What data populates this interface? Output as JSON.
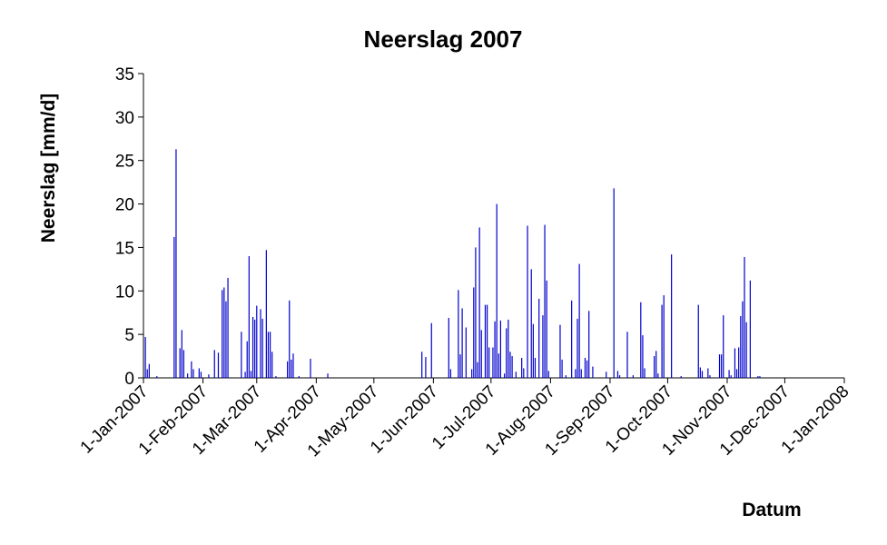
{
  "chart_data": {
    "type": "bar",
    "title": "Neerslag 2007",
    "y_label": "Neerslag [mm/d]",
    "x_label": "Datum",
    "color": "#0000cc",
    "xlim": [
      "2007-01-01",
      "2008-01-01"
    ],
    "xticks": [
      {
        "value": "2007-01-01",
        "label": "1-Jan-2007"
      },
      {
        "value": "2007-02-01",
        "label": "1-Feb-2007"
      },
      {
        "value": "2007-03-01",
        "label": "1-Mar-2007"
      },
      {
        "value": "2007-04-01",
        "label": "1-Apr-2007"
      },
      {
        "value": "2007-05-01",
        "label": "1-May-2007"
      },
      {
        "value": "2007-06-01",
        "label": "1-Jun-2007"
      },
      {
        "value": "2007-07-01",
        "label": "1-Jul-2007"
      },
      {
        "value": "2007-08-01",
        "label": "1-Aug-2007"
      },
      {
        "value": "2007-09-01",
        "label": "1-Sep-2007"
      },
      {
        "value": "2007-10-01",
        "label": "1-Oct-2007"
      },
      {
        "value": "2007-11-01",
        "label": "1-Nov-2007"
      },
      {
        "value": "2007-12-01",
        "label": "1-Dec-2007"
      },
      {
        "value": "2008-01-01",
        "label": "1-Jan-2008"
      }
    ],
    "ylim": [
      0,
      35
    ],
    "yticks": [
      0,
      5,
      10,
      15,
      20,
      25,
      30,
      35
    ],
    "x": [
      "2007-01-02",
      "2007-01-03",
      "2007-01-04",
      "2007-01-08",
      "2007-01-17",
      "2007-01-18",
      "2007-01-20",
      "2007-01-21",
      "2007-01-22",
      "2007-01-24",
      "2007-01-26",
      "2007-01-27",
      "2007-01-30",
      "2007-01-31",
      "2007-02-04",
      "2007-02-07",
      "2007-02-09",
      "2007-02-11",
      "2007-02-12",
      "2007-02-13",
      "2007-02-14",
      "2007-02-21",
      "2007-02-23",
      "2007-02-24",
      "2007-02-25",
      "2007-02-26",
      "2007-02-27",
      "2007-02-28",
      "2007-03-01",
      "2007-03-03",
      "2007-03-04",
      "2007-03-06",
      "2007-03-07",
      "2007-03-08",
      "2007-03-09",
      "2007-03-11",
      "2007-03-17",
      "2007-03-18",
      "2007-03-19",
      "2007-03-20",
      "2007-03-23",
      "2007-03-29",
      "2007-04-07",
      "2007-05-26",
      "2007-05-28",
      "2007-05-31",
      "2007-06-09",
      "2007-06-10",
      "2007-06-14",
      "2007-06-15",
      "2007-06-16",
      "2007-06-18",
      "2007-06-21",
      "2007-06-22",
      "2007-06-23",
      "2007-06-24",
      "2007-06-25",
      "2007-06-26",
      "2007-06-28",
      "2007-06-29",
      "2007-06-30",
      "2007-07-02",
      "2007-07-03",
      "2007-07-04",
      "2007-07-05",
      "2007-07-06",
      "2007-07-08",
      "2007-07-09",
      "2007-07-10",
      "2007-07-11",
      "2007-07-12",
      "2007-07-14",
      "2007-07-17",
      "2007-07-18",
      "2007-07-20",
      "2007-07-22",
      "2007-07-23",
      "2007-07-24",
      "2007-07-26",
      "2007-07-28",
      "2007-07-29",
      "2007-07-30",
      "2007-07-31",
      "2007-08-06",
      "2007-08-07",
      "2007-08-09",
      "2007-08-12",
      "2007-08-14",
      "2007-08-15",
      "2007-08-16",
      "2007-08-17",
      "2007-08-19",
      "2007-08-20",
      "2007-08-21",
      "2007-08-23",
      "2007-08-30",
      "2007-09-03",
      "2007-09-05",
      "2007-09-06",
      "2007-09-10",
      "2007-09-13",
      "2007-09-17",
      "2007-09-18",
      "2007-09-19",
      "2007-09-24",
      "2007-09-25",
      "2007-09-26",
      "2007-09-28",
      "2007-09-29",
      "2007-10-03",
      "2007-10-08",
      "2007-10-17",
      "2007-10-18",
      "2007-10-19",
      "2007-10-22",
      "2007-10-23",
      "2007-10-28",
      "2007-10-29",
      "2007-10-30",
      "2007-11-02",
      "2007-11-03",
      "2007-11-05",
      "2007-11-06",
      "2007-11-07",
      "2007-11-08",
      "2007-11-09",
      "2007-11-10",
      "2007-11-11",
      "2007-11-13",
      "2007-11-17",
      "2007-11-18"
    ],
    "values": [
      4.7,
      1.0,
      1.6,
      0.2,
      16.2,
      26.3,
      3.4,
      5.5,
      3.2,
      0.5,
      1.9,
      1.0,
      1.1,
      0.7,
      0.4,
      3.2,
      2.9,
      10.1,
      10.4,
      8.8,
      11.5,
      5.3,
      0.7,
      4.2,
      14.0,
      0.8,
      7.0,
      6.7,
      8.3,
      7.9,
      6.8,
      14.7,
      5.3,
      5.3,
      3.0,
      0.2,
      1.9,
      8.9,
      2.1,
      2.8,
      0.2,
      2.2,
      0.5,
      3.0,
      2.4,
      6.3,
      6.9,
      1.0,
      10.1,
      2.7,
      8.0,
      5.8,
      1.0,
      10.4,
      15.0,
      1.8,
      17.3,
      5.5,
      8.4,
      8.4,
      3.5,
      3.5,
      6.5,
      20.0,
      2.8,
      6.6,
      0.5,
      5.7,
      6.7,
      3.0,
      2.5,
      0.7,
      2.3,
      1.1,
      17.5,
      12.5,
      6.2,
      2.3,
      9.1,
      7.2,
      17.6,
      11.2,
      0.8,
      6.1,
      2.1,
      0.3,
      8.9,
      1.0,
      6.8,
      13.1,
      1.0,
      2.3,
      2.0,
      7.7,
      1.3,
      0.7,
      21.8,
      0.8,
      0.3,
      5.3,
      0.3,
      8.7,
      4.9,
      1.1,
      2.5,
      3.1,
      0.5,
      8.4,
      9.5,
      14.2,
      0.2,
      8.4,
      1.2,
      0.8,
      1.1,
      0.3,
      2.7,
      2.7,
      7.2,
      0.9,
      0.3,
      3.4,
      1.0,
      3.5,
      7.1,
      8.8,
      13.9,
      6.4,
      11.2,
      0.2,
      0.2
    ]
  }
}
